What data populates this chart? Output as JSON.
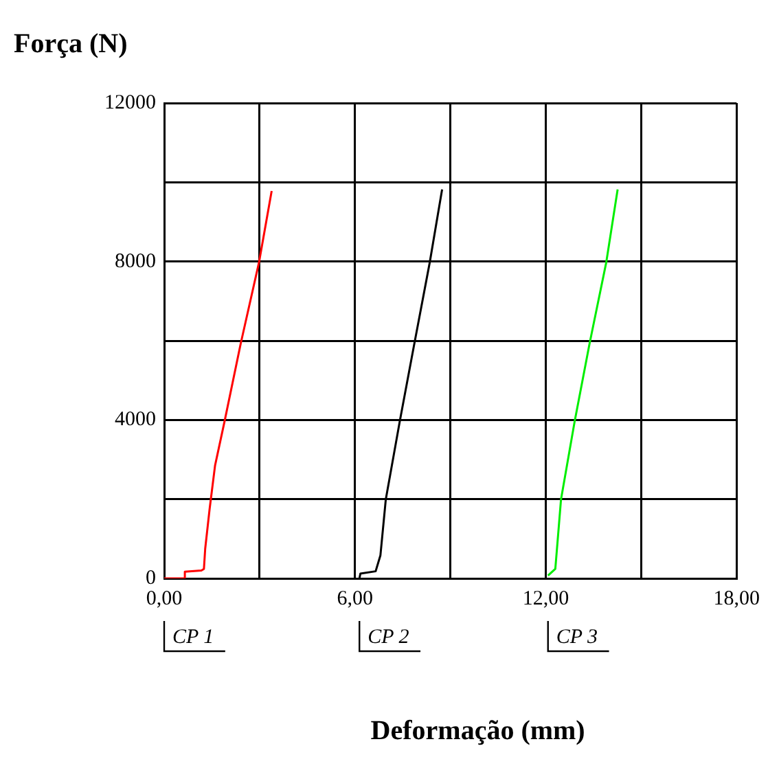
{
  "chart_data": {
    "type": "line",
    "xlabel": "Deformação (mm)",
    "ylabel": "Força (N)",
    "xlim": [
      0,
      18
    ],
    "xticks": [
      {
        "value": 0,
        "label": "0,00"
      },
      {
        "value": 3,
        "label": null
      },
      {
        "value": 6,
        "label": "6,00"
      },
      {
        "value": 9,
        "label": null
      },
      {
        "value": 12,
        "label": "12,00"
      },
      {
        "value": 15,
        "label": null
      },
      {
        "value": 18,
        "label": "18,00"
      }
    ],
    "ylim": [
      0,
      12000
    ],
    "yticks": [
      0,
      {
        "value": 2000,
        "label": null
      },
      4000,
      {
        "value": 6000,
        "label": null
      },
      8000,
      {
        "value": 10000,
        "label": null
      },
      12000
    ],
    "grid": true,
    "legend": false,
    "marker": "none",
    "line_style": "solid",
    "series": [
      {
        "name": "CP 1",
        "color": "#ff0000",
        "x": [
          0,
          0.65,
          0.65,
          1.17,
          1.25,
          1.29,
          1.43,
          1.6,
          1.9,
          2.41,
          2.98,
          3.38
        ],
        "values": [
          0,
          0,
          170,
          200,
          240,
          750,
          1760,
          2850,
          3970,
          5940,
          7970,
          9780
        ]
      },
      {
        "name": "CP 2",
        "color": "#000000",
        "x": [
          6.14,
          6.17,
          6.65,
          6.8,
          6.97,
          7.41,
          7.87,
          8.35,
          8.74
        ],
        "values": [
          0,
          120,
          180,
          580,
          2000,
          3970,
          5940,
          7970,
          9820
        ]
      },
      {
        "name": "CP 3",
        "color": "#00ee00",
        "x": [
          12.07,
          12.3,
          12.48,
          12.91,
          13.38,
          13.9,
          14.26
        ],
        "values": [
          70,
          240,
          2000,
          3970,
          5940,
          7970,
          9820
        ]
      }
    ]
  }
}
